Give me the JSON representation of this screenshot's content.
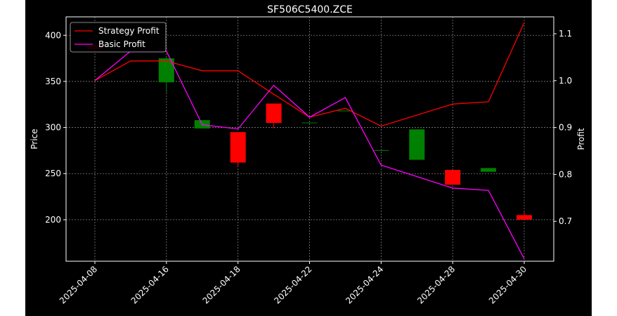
{
  "chart_data": {
    "type": "candlestick+line",
    "title": "SF506C5400.ZCE",
    "ylabel_left": "Price",
    "ylabel_right": "Profit",
    "xlabel": "",
    "x_tick_labels": [
      "2025-04-08",
      "2025-04-16",
      "2025-04-18",
      "2025-04-22",
      "2025-04-24",
      "2025-04-28",
      "2025-04-30"
    ],
    "y_left_ticks": [
      200,
      250,
      300,
      350,
      400
    ],
    "y_right_ticks": [
      "0.7",
      "0.8",
      "0.9",
      "1.0",
      "1.1"
    ],
    "ylim_left": [
      155,
      420
    ],
    "ylim_right": [
      0.615,
      1.136
    ],
    "grid": true,
    "legend_position": "upper-left",
    "dates": [
      "2025-04-08",
      "2025-04-14",
      "2025-04-16",
      "2025-04-17",
      "2025-04-18",
      "2025-04-21",
      "2025-04-22",
      "2025-04-23",
      "2025-04-24",
      "2025-04-25",
      "2025-04-28",
      "2025-04-29",
      "2025-04-30"
    ],
    "candles": [
      {
        "open": 389,
        "close": 385,
        "high": 389,
        "low": 385
      },
      null,
      {
        "open": 349,
        "close": 375,
        "high": 376,
        "low": 338
      },
      {
        "open": 299,
        "close": 308,
        "high": 308,
        "low": 299
      },
      {
        "open": 295,
        "close": 262,
        "high": 295,
        "low": 258
      },
      {
        "open": 326,
        "close": 305,
        "high": 326,
        "low": 299
      },
      {
        "open": 305,
        "close": 305,
        "high": 305,
        "low": 305
      },
      {
        "open": 318,
        "close": 318,
        "high": 318,
        "low": 318
      },
      {
        "open": 275,
        "close": 275,
        "high": 275,
        "low": 275
      },
      {
        "open": 265,
        "close": 298,
        "high": 298,
        "low": 265
      },
      {
        "open": 254,
        "close": 238,
        "high": 254,
        "low": 238
      },
      {
        "open": 252,
        "close": 256,
        "high": 256,
        "low": 252
      },
      {
        "open": 205,
        "close": 200,
        "high": 209,
        "low": 200
      }
    ],
    "series": [
      {
        "name": "Strategy Profit",
        "color": "#ff0000",
        "values": [
          1.0,
          1.042,
          1.042,
          1.021,
          1.021,
          0.971,
          0.922,
          0.941,
          0.903,
          null,
          0.95,
          0.955,
          1.124
        ]
      },
      {
        "name": "Basic Profit",
        "color": "#ff00ff",
        "values": [
          1.0,
          1.063,
          1.063,
          0.906,
          0.897,
          0.99,
          0.922,
          0.964,
          0.82,
          null,
          0.771,
          0.766,
          0.62
        ]
      }
    ],
    "candle_colors": {
      "up": "#008000",
      "down": "#ff0000"
    }
  }
}
